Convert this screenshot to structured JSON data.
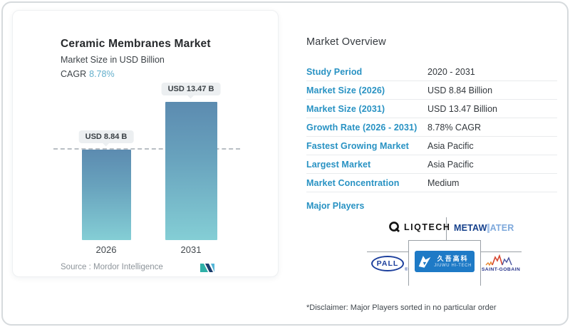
{
  "chart_data": {
    "type": "bar",
    "title": "Ceramic Membranes Market",
    "subtitle": "Market Size in USD Billion",
    "categories": [
      "2026",
      "2031"
    ],
    "values": [
      8.84,
      13.47
    ],
    "bar_labels": [
      "USD 8.84 B",
      "USD 13.47 B"
    ],
    "ylabel": "Market Size in USD Billion",
    "reference_line": 8.84,
    "legend": [],
    "grid": "off"
  },
  "card": {
    "title": "Ceramic Membranes Market",
    "subtitle": "Market Size in USD Billion",
    "cagr_label": "CAGR",
    "cagr_value": "8.78%",
    "source_label": "Source :  Mordor Intelligence"
  },
  "overview": {
    "title": "Market Overview",
    "rows": [
      {
        "label": "Study Period",
        "value": "2020 - 2031"
      },
      {
        "label": "Market Size (2026)",
        "value": "USD 8.84 Billion"
      },
      {
        "label": "Market Size (2031)",
        "value": "USD 13.47 Billion"
      },
      {
        "label": "Growth Rate (2026 - 2031)",
        "value": "8.78% CAGR"
      },
      {
        "label": "Fastest Growing Market",
        "value": "Asia Pacific"
      },
      {
        "label": "Largest Market",
        "value": "Asia Pacific"
      },
      {
        "label": "Market Concentration",
        "value": "Medium"
      }
    ],
    "major_players_label": "Major Players",
    "players": {
      "liqtech": "LIQTECH",
      "metawater_dark": "METAW",
      "metawater_light": "ATER",
      "pall": "PALL",
      "pall_reg": "®",
      "jiuwu_cn": "久吾高科",
      "jiuwu_en": "JIUWU HI-TECH",
      "saint_gobain": "SAINT-GOBAIN"
    },
    "disclaimer": "*Disclaimer: Major Players sorted in no particular order"
  },
  "colors": {
    "accent_blue": "#2892c3",
    "cagr_teal": "#62aecb",
    "bar_gradient_top": "#5c8bb0",
    "bar_gradient_bottom": "#84ced5",
    "pill_bg": "#eceff1",
    "divider": "#e9ebed",
    "grid_line": "#9aa0a6"
  }
}
